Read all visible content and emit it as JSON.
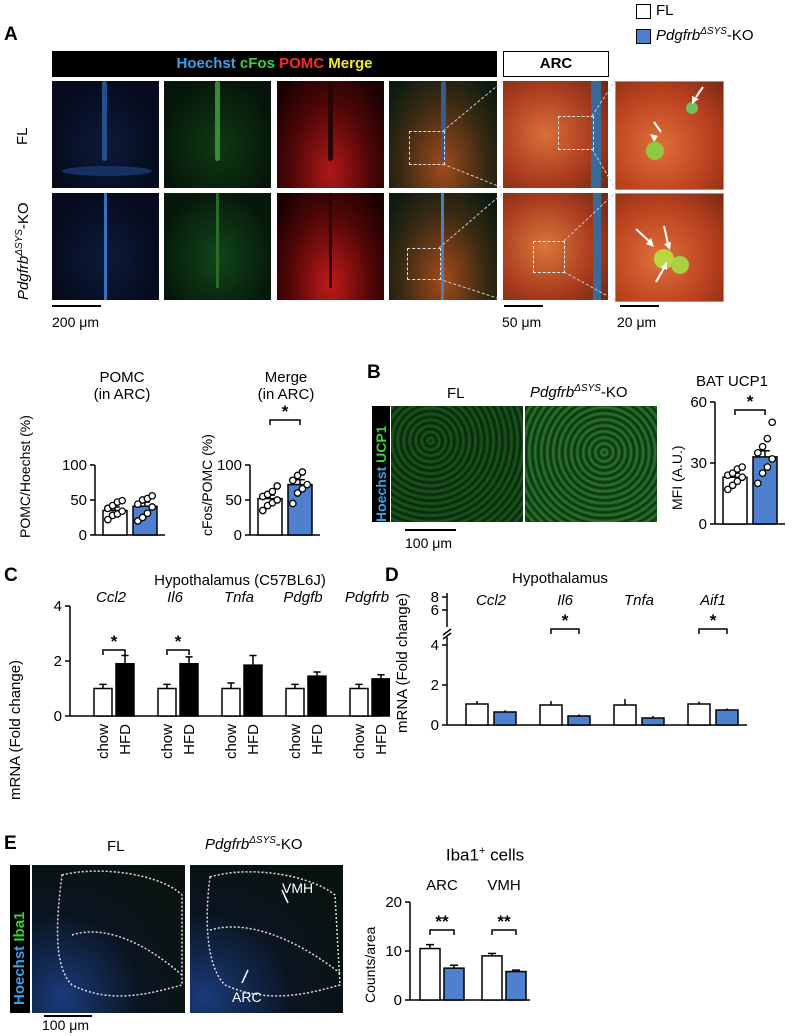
{
  "legend": {
    "fl": {
      "label": "FL",
      "color": "#ffffff"
    },
    "ko": {
      "label_main": "Pdgfrb",
      "label_sup": "ΔSYS",
      "label_suffix": "-KO",
      "color": "#4f7fcf"
    }
  },
  "panelA": {
    "letter": "A",
    "header": {
      "hoechst": "Hoechst",
      "cfos": "cFos",
      "pomc": "POMC",
      "merge": "Merge",
      "arc": "ARC"
    },
    "rows": {
      "fl": "FL",
      "ko_main": "Pdgfrb",
      "ko_sup": "ΔSYS",
      "ko_suffix": "-KO"
    },
    "scalebars": {
      "a": "200 μm",
      "b": "50 μm",
      "c": "20 μm"
    }
  },
  "chartPOMC": {
    "title_line1": "POMC",
    "title_line2": "(in ARC)",
    "ylabel": "POMC/Hoechst (%)",
    "yticks": [
      "0",
      "50",
      "100"
    ]
  },
  "chartMerge": {
    "title_line1": "Merge",
    "title_line2": "(in ARC)",
    "ylabel": "cFos/POMC (%)",
    "yticks": [
      "0",
      "50",
      "100"
    ],
    "sig": "*"
  },
  "panelB": {
    "letter": "B",
    "fl": "FL",
    "ko_main": "Pdgfrb",
    "ko_sup": "ΔSYS",
    "ko_suffix": "-KO",
    "side_hoechst": "Hoechst",
    "side_ucp1": "UCP1",
    "scalebar": "100 μm"
  },
  "chartUCP1": {
    "title": "BAT UCP1",
    "ylabel": "MFI (A.U.)",
    "yticks": [
      "0",
      "30",
      "60"
    ],
    "sig": "*"
  },
  "panelC": {
    "letter": "C",
    "title": "Hypothalamus (C57BL6J)",
    "genes": [
      "Ccl2",
      "Il6",
      "Tnfa",
      "Pdgfb",
      "Pdgfrb"
    ],
    "ylabel": "mRNA  (Fold change)",
    "yticks": [
      "0",
      "2",
      "4"
    ],
    "xlabels": [
      "chow",
      "HFD"
    ],
    "sig": "*"
  },
  "panelD": {
    "letter": "D",
    "title": "Hypothalamus",
    "genes": [
      "Ccl2",
      "Il6",
      "Tnfa",
      "Aif1"
    ],
    "ylabel": "mRNA  (Fold change)",
    "yticks": [
      "0",
      "2",
      "4",
      "6",
      "8"
    ],
    "sig": "*"
  },
  "panelE": {
    "letter": "E",
    "fl": "FL",
    "ko_main": "Pdgfrb",
    "ko_sup": "ΔSYS",
    "ko_suffix": "-KO",
    "side_hoechst": "Hoechst",
    "side_iba1": "Iba1",
    "vmh": "VMH",
    "arc": "ARC",
    "scalebar": "100 μm"
  },
  "chartIba1": {
    "title_main": "Iba1",
    "title_sup": "+",
    "title_suffix": " cells",
    "groups": [
      "ARC",
      "VMH"
    ],
    "ylabel": "Counts/area",
    "yticks": [
      "0",
      "10",
      "20"
    ],
    "sig": "**"
  },
  "chart_data": [
    {
      "type": "bar",
      "id": "pomc",
      "categories": [
        "FL",
        "Pdgfrb-KO"
      ],
      "values": [
        35,
        41
      ],
      "errors": [
        5,
        6
      ],
      "points": [
        [
          22,
          28,
          30,
          34,
          38,
          42,
          47,
          49
        ],
        [
          20,
          25,
          31,
          40,
          44,
          50,
          52,
          56
        ]
      ],
      "ylabel": "POMC/Hoechst (%)",
      "ylim": [
        0,
        100
      ]
    },
    {
      "type": "bar",
      "id": "merge",
      "categories": [
        "FL",
        "Pdgfrb-KO"
      ],
      "values": [
        52,
        72
      ],
      "errors": [
        5,
        7
      ],
      "points": [
        [
          35,
          42,
          46,
          50,
          55,
          58,
          62,
          70
        ],
        [
          45,
          60,
          66,
          72,
          78,
          85,
          90
        ]
      ],
      "ylabel": "cFos/POMC (%)",
      "ylim": [
        0,
        100
      ]
    },
    {
      "type": "bar",
      "id": "ucp1",
      "categories": [
        "FL",
        "Pdgfrb-KO"
      ],
      "values": [
        23,
        33
      ],
      "errors": [
        2,
        3
      ],
      "points": [
        [
          17,
          19,
          21,
          23,
          24,
          25,
          27,
          28
        ],
        [
          20,
          25,
          28,
          32,
          35,
          38,
          42,
          50
        ]
      ],
      "ylabel": "MFI (A.U.)",
      "ylim": [
        0,
        60
      ]
    },
    {
      "type": "bar",
      "id": "hypoC57",
      "genes": [
        "Ccl2",
        "Il6",
        "Tnfa",
        "Pdgfb",
        "Pdgfrb"
      ],
      "series": [
        {
          "name": "chow",
          "values": [
            1.0,
            1.0,
            1.0,
            1.0,
            1.0
          ],
          "errors": [
            0.15,
            0.15,
            0.2,
            0.15,
            0.15
          ]
        },
        {
          "name": "HFD",
          "values": [
            1.9,
            1.9,
            1.85,
            1.45,
            1.35
          ],
          "errors": [
            0.3,
            0.25,
            0.35,
            0.15,
            0.15
          ]
        }
      ],
      "ylabel": "mRNA  (Fold change)",
      "ylim": [
        0,
        4
      ]
    },
    {
      "type": "bar",
      "id": "hypoKO",
      "genes": [
        "Ccl2",
        "Il6",
        "Tnfa",
        "Aif1"
      ],
      "series": [
        {
          "name": "FL",
          "values": [
            1.05,
            1.0,
            1.0,
            1.05
          ],
          "errors": [
            0.15,
            0.2,
            0.3,
            0.12
          ]
        },
        {
          "name": "Pdgfrb-KO",
          "values": [
            0.65,
            0.45,
            0.35,
            0.75
          ],
          "errors": [
            0.08,
            0.08,
            0.1,
            0.08
          ]
        }
      ],
      "ylabel": "mRNA  (Fold change)",
      "ylim": [
        0,
        8
      ]
    },
    {
      "type": "bar",
      "id": "iba1",
      "categories": [
        "ARC",
        "VMH"
      ],
      "series": [
        {
          "name": "FL",
          "values": [
            10.5,
            9.0
          ],
          "errors": [
            0.8,
            0.5
          ]
        },
        {
          "name": "Pdgfrb-KO",
          "values": [
            6.5,
            5.8
          ],
          "errors": [
            0.6,
            0.3
          ]
        }
      ],
      "ylabel": "Counts/area",
      "ylim": [
        0,
        20
      ]
    }
  ]
}
